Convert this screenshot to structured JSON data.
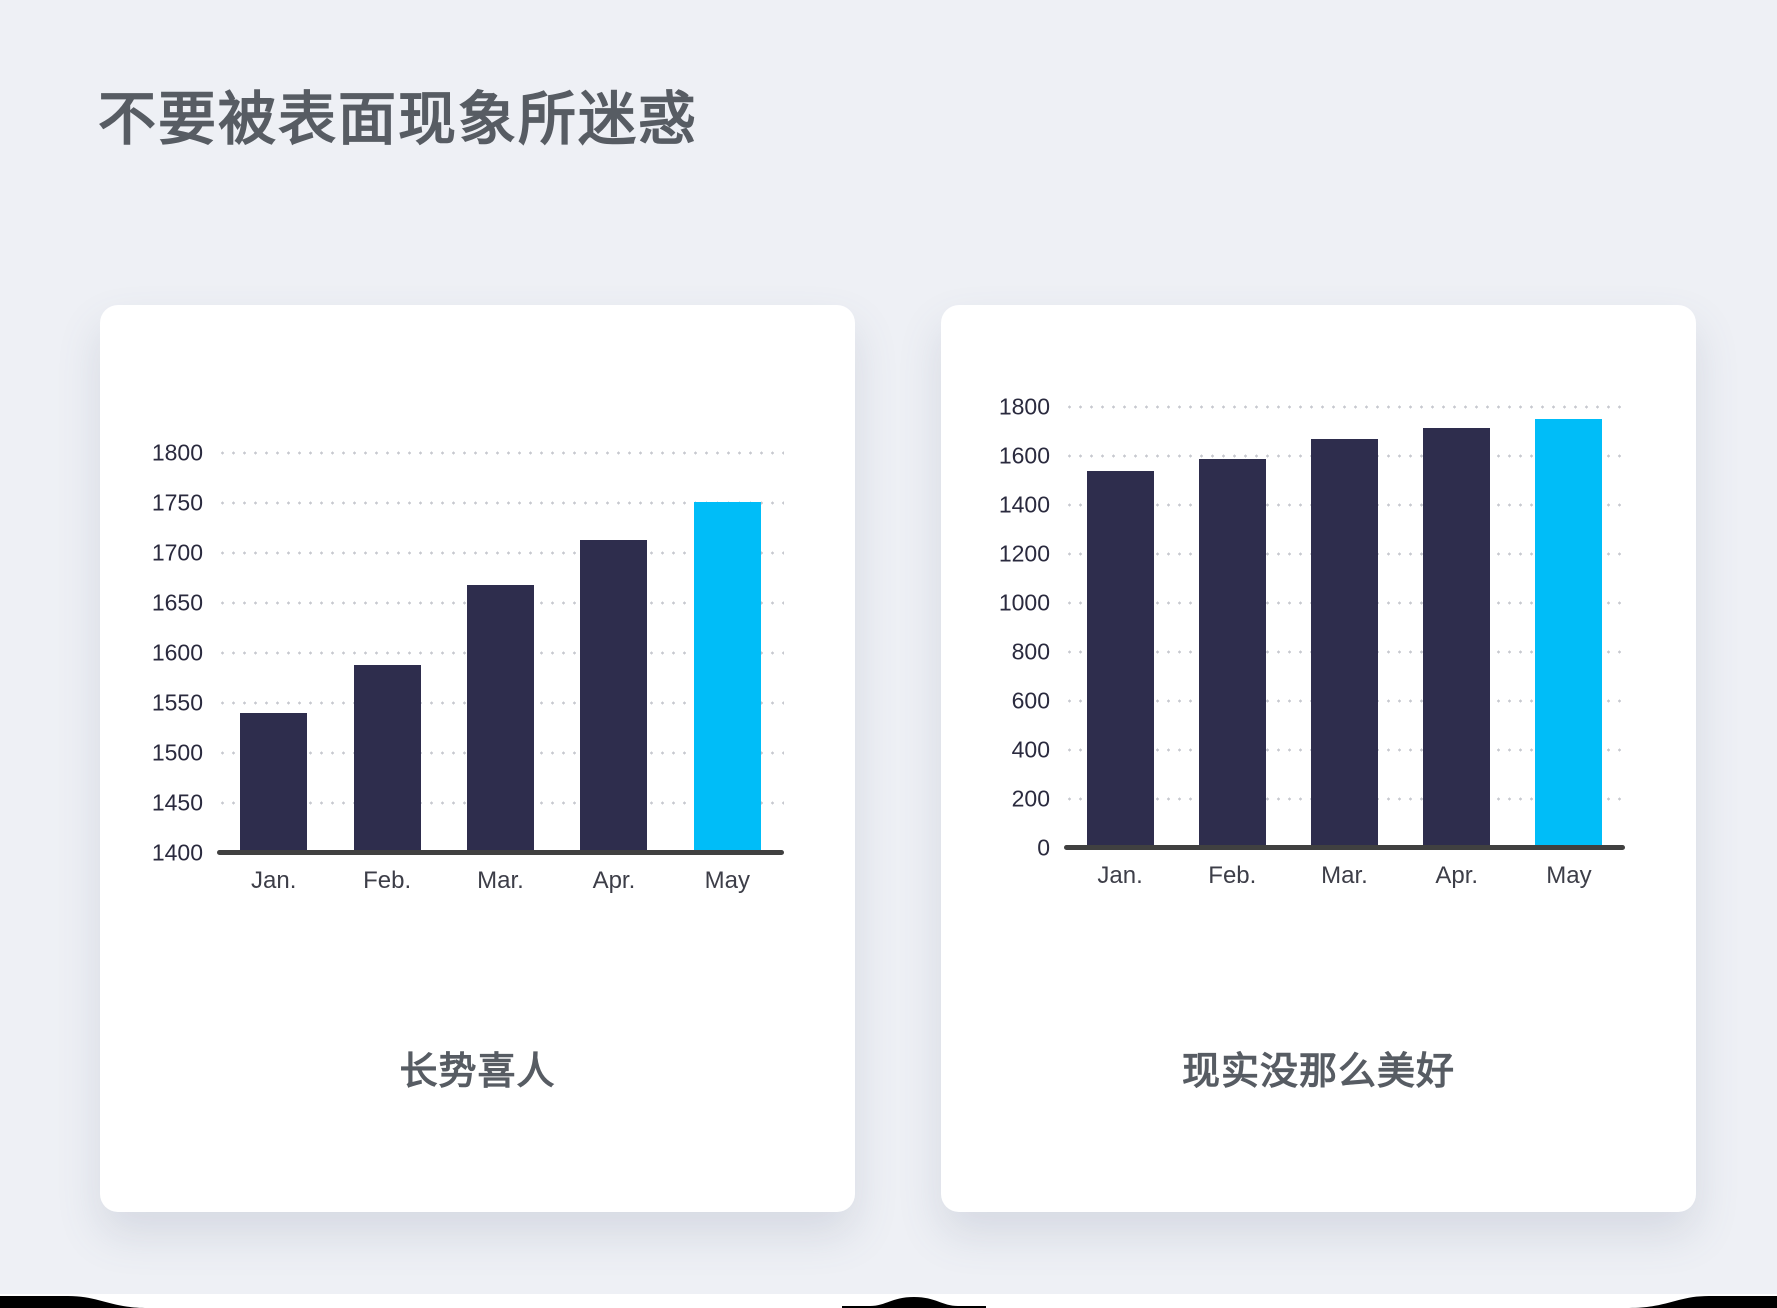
{
  "page": {
    "title": "不要被表面现象所迷惑"
  },
  "colors": {
    "page_background": "#eef0f5",
    "card_background": "#ffffff",
    "title_text": "#575c63",
    "caption_text": "#575c63",
    "bar_default": "#2e2d4d",
    "bar_highlight": "#00bdf8",
    "axis_line": "#404040",
    "gridline": "#c7c9cf",
    "tick_label": "#2a2a3e",
    "xtick_label": "#3d3e48",
    "torn_edge": "#000000"
  },
  "chart_data": [
    {
      "type": "bar",
      "title": "长势喜人",
      "categories": [
        "Jan.",
        "Feb.",
        "Mar.",
        "Apr.",
        "May"
      ],
      "values": [
        1540,
        1588,
        1668,
        1713,
        1751
      ],
      "highlight_index": 4,
      "ylim": [
        1400,
        1800
      ],
      "yticks": [
        1400,
        1450,
        1500,
        1550,
        1600,
        1650,
        1700,
        1750,
        1800
      ],
      "xlabel": "",
      "ylabel": "",
      "grid": "horizontal-dotted",
      "legend": "none"
    },
    {
      "type": "bar",
      "title": "现实没那么美好",
      "categories": [
        "Jan.",
        "Feb.",
        "Mar.",
        "Apr.",
        "May"
      ],
      "values": [
        1540,
        1588,
        1668,
        1713,
        1751
      ],
      "highlight_index": 4,
      "ylim": [
        0,
        1800
      ],
      "yticks": [
        0,
        200,
        400,
        600,
        800,
        1000,
        1200,
        1400,
        1600,
        1800
      ],
      "xlabel": "",
      "ylabel": "",
      "grid": "horizontal-dotted",
      "legend": "none"
    }
  ]
}
